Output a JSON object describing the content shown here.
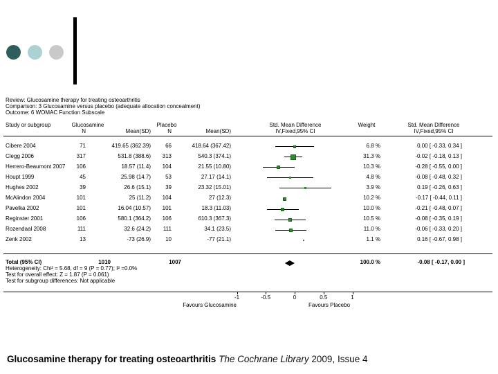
{
  "decor": {
    "circle_colors": [
      "#2f5d5c",
      "#abd1d3",
      "#c9c9c9"
    ]
  },
  "caption": {
    "bold": "Glucosamine therapy for treating osteoarthritis",
    "italic": " The Cochrane Library",
    "regular": " 2009, Issue 4"
  },
  "chart_data": {
    "type": "forest",
    "header": {
      "review": "Review: Glucosamine therapy for treating osteoarthritis",
      "comparison": "Comparison: 3 Glucosamine versus placebo (adequate allocation concealment)",
      "outcome": "Outcome: 6 WOMAC Function Subscale"
    },
    "columns": {
      "study": "Study or subgroup",
      "group1": "Glucosamine",
      "group2": "Placebo",
      "n": "N",
      "mean_sd": "Mean(SD)",
      "smd_line1": "Std. Mean Difference",
      "smd_line2": "IV,Fixed,95% CI",
      "weight": "Weight"
    },
    "studies": [
      {
        "name": "Cibere 2004",
        "n1": "71",
        "mean_sd1": "419.65 (362.39)",
        "n2": "66",
        "mean_sd2": "418.64 (367.42)",
        "weight": "6.8 %",
        "smd_text": "0.00 [ -0.33, 0.34 ]",
        "smd": 0.0,
        "ci_lo": -0.33,
        "ci_hi": 0.34,
        "weight_pct": 6.8,
        "ci_line": true
      },
      {
        "name": "Clegg 2006",
        "n1": "317",
        "mean_sd1": "531.8 (388.6)",
        "n2": "313",
        "mean_sd2": "540.3 (374.1)",
        "weight": "31.3 %",
        "smd_text": "-0.02 [ -0.18, 0.13 ]",
        "smd": -0.02,
        "ci_lo": -0.18,
        "ci_hi": 0.13,
        "weight_pct": 31.3,
        "ci_line": true
      },
      {
        "name": "Herrero-Beaumont 2007",
        "n1": "106",
        "mean_sd1": "18.57 (11.4)",
        "n2": "104",
        "mean_sd2": "21.55 (10.80)",
        "weight": "10.3 %",
        "smd_text": "-0.28 [ -0.55, 0.00 ]",
        "smd": -0.28,
        "ci_lo": -0.55,
        "ci_hi": 0.0,
        "weight_pct": 10.3,
        "ci_line": true
      },
      {
        "name": "Houpt 1999",
        "n1": "45",
        "mean_sd1": "25.98 (14.7)",
        "n2": "53",
        "mean_sd2": "27.17 (14.1)",
        "weight": "4.8 %",
        "smd_text": "-0.08 [ -0.48, 0.32 ]",
        "smd": -0.08,
        "ci_lo": -0.48,
        "ci_hi": 0.32,
        "weight_pct": 4.8,
        "ci_line": true
      },
      {
        "name": "Hughes 2002",
        "n1": "39",
        "mean_sd1": "26.6 (15.1)",
        "n2": "39",
        "mean_sd2": "23.32 (15.01)",
        "weight": "3.9 %",
        "smd_text": "0.19 [ -0.26, 0.63 ]",
        "smd": 0.19,
        "ci_lo": -0.26,
        "ci_hi": 0.63,
        "weight_pct": 3.9,
        "ci_line": true
      },
      {
        "name": "McAlindon 2004",
        "n1": "101",
        "mean_sd1": "25 (11.2)",
        "n2": "104",
        "mean_sd2": "27 (12.3)",
        "weight": "10.2 %",
        "smd_text": "-0.17 [ -0.44, 0.11 ]",
        "smd": -0.17,
        "ci_lo": -0.44,
        "ci_hi": 0.11,
        "weight_pct": 10.2,
        "ci_line": false
      },
      {
        "name": "Pavelka 2002",
        "n1": "101",
        "mean_sd1": "16.04 (10.57)",
        "n2": "101",
        "mean_sd2": "18.3 (11.03)",
        "weight": "10.0 %",
        "smd_text": "-0.21 [ -0.48, 0.07 ]",
        "smd": -0.21,
        "ci_lo": -0.48,
        "ci_hi": 0.07,
        "weight_pct": 10.0,
        "ci_line": true
      },
      {
        "name": "Reginster 2001",
        "n1": "106",
        "mean_sd1": "580.1 (364.2)",
        "n2": "106",
        "mean_sd2": "610.3 (367.3)",
        "weight": "10.5 %",
        "smd_text": "-0.08 [ -0.35, 0.19 ]",
        "smd": -0.08,
        "ci_lo": -0.35,
        "ci_hi": 0.19,
        "weight_pct": 10.5,
        "ci_line": true
      },
      {
        "name": "Rozendaal 2008",
        "n1": "111",
        "mean_sd1": "32.6 (24.2)",
        "n2": "111",
        "mean_sd2": "34.1 (23.5)",
        "weight": "11.0 %",
        "smd_text": "-0.06 [ -0.33, 0.20 ]",
        "smd": -0.06,
        "ci_lo": -0.33,
        "ci_hi": 0.2,
        "weight_pct": 11.0,
        "ci_line": true
      },
      {
        "name": "Zenk 2002",
        "n1": "13",
        "mean_sd1": "-73 (26.9)",
        "n2": "10",
        "mean_sd2": "-77 (21.1)",
        "weight": "1.1 %",
        "smd_text": "0.16 [ -0.67, 0.98 ]",
        "smd": 0.16,
        "ci_lo": -0.67,
        "ci_hi": 0.98,
        "weight_pct": 1.1,
        "ci_line": false
      }
    ],
    "total": {
      "label": "Total (95% CI)",
      "n1": "1010",
      "n2": "1007",
      "weight": "100.0 %",
      "smd_text": "-0.08 [ -0.17, 0.00 ]",
      "smd": -0.08,
      "ci_lo": -0.17,
      "ci_hi": 0.0
    },
    "footnotes": [
      "Heterogeneity: Chi² = 5.68, df = 9 (P = 0.77); I² =0.0%",
      "Test for overall effect: Z = 1.87 (P = 0.061)",
      "Test for subgroup differences: Not applicable"
    ],
    "axis": {
      "ticks": [
        -1,
        -0.5,
        0,
        0.5,
        1
      ],
      "tick_labels": [
        "-1",
        "-0.5",
        "0",
        "0.5",
        "1"
      ],
      "xlim": [
        -1,
        1
      ],
      "favours_left": "Favours Glucosamine",
      "favours_right": "Favours Placebo"
    },
    "marker_color": "#2E8B2E",
    "marker_border": "#1B5E1B",
    "diamond_color": "#000000"
  }
}
